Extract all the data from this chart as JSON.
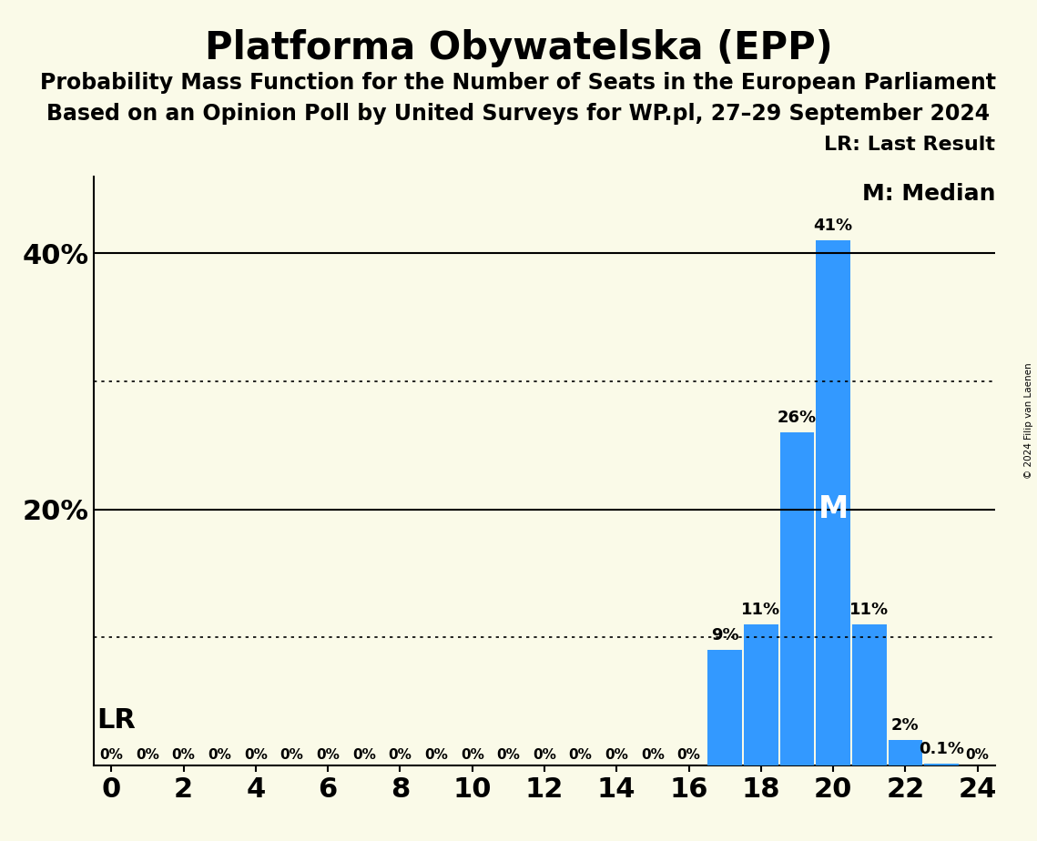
{
  "title": "Platforma Obywatelska (EPP)",
  "subtitle1": "Probability Mass Function for the Number of Seats in the European Parliament",
  "subtitle2": "Based on an Opinion Poll by United Surveys for WP.pl, 27–29 September 2024",
  "copyright": "© 2024 Filip van Laenen",
  "bar_values": [
    0,
    0,
    0,
    0,
    0,
    0,
    0,
    0,
    0,
    0,
    0,
    0,
    0,
    0,
    0,
    0,
    0,
    9,
    11,
    26,
    41,
    11,
    2,
    0.1,
    0
  ],
  "bar_labels": [
    "0%",
    "0%",
    "0%",
    "0%",
    "0%",
    "0%",
    "0%",
    "0%",
    "0%",
    "0%",
    "0%",
    "0%",
    "0%",
    "0%",
    "0%",
    "0%",
    "0%",
    "9%",
    "11%",
    "26%",
    "41%",
    "11%",
    "2%",
    "0.1%",
    "0%"
  ],
  "seats": [
    0,
    1,
    2,
    3,
    4,
    5,
    6,
    7,
    8,
    9,
    10,
    11,
    12,
    13,
    14,
    15,
    16,
    17,
    18,
    19,
    20,
    21,
    22,
    23,
    24
  ],
  "xticks": [
    0,
    2,
    4,
    6,
    8,
    10,
    12,
    14,
    16,
    18,
    20,
    22,
    24
  ],
  "yticks": [
    0,
    20,
    40
  ],
  "ytick_labels": [
    "",
    "20%",
    "40%"
  ],
  "ylim": [
    0,
    46
  ],
  "xlim": [
    -0.5,
    24.5
  ],
  "bar_color": "#3399ff",
  "background_color": "#fafae8",
  "solid_hlines": [
    20,
    40
  ],
  "dotted_hlines": [
    10,
    30
  ],
  "lr_seat": 20,
  "median_seat": 20,
  "lr_label": "LR",
  "median_label": "M",
  "legend_lr": "LR: Last Result",
  "legend_m": "M: Median",
  "title_fontsize": 30,
  "subtitle_fontsize": 17,
  "bar_label_fontsize": 13,
  "ytick_label_fontsize": 22,
  "xtick_label_fontsize": 22
}
